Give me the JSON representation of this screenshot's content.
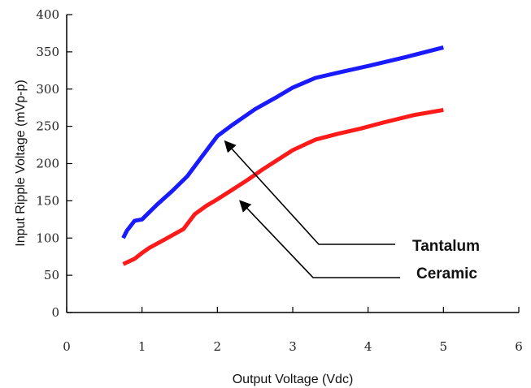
{
  "chart_data": {
    "type": "line",
    "xlabel": "Output Voltage (Vdc)",
    "ylabel": "Input Ripple Voltage (mVp-p)",
    "xlim": [
      0,
      6
    ],
    "ylim": [
      0,
      400
    ],
    "xticks": [
      "0",
      "1",
      "2",
      "3",
      "4",
      "5",
      "6"
    ],
    "yticks": [
      "0",
      "50",
      "100",
      "150",
      "200",
      "250",
      "300",
      "350",
      "400"
    ],
    "grid": false,
    "legend": "none",
    "series": [
      {
        "name": "Tantalum",
        "color": "#1a1aff",
        "x": [
          0.75,
          0.8,
          0.9,
          1.0,
          1.05,
          1.2,
          1.4,
          1.6,
          1.8,
          2.0,
          2.2,
          2.5,
          2.8,
          3.0,
          3.3,
          3.6,
          4.0,
          4.5,
          5.0
        ],
        "y": [
          100,
          110,
          123,
          125,
          130,
          145,
          163,
          183,
          210,
          237,
          252,
          273,
          290,
          302,
          315,
          322,
          331,
          343,
          356
        ]
      },
      {
        "name": "Ceramic",
        "color": "#ff1a1a",
        "x": [
          0.75,
          0.9,
          1.0,
          1.1,
          1.3,
          1.55,
          1.7,
          1.85,
          2.0,
          2.2,
          2.4,
          2.6,
          2.8,
          3.0,
          3.3,
          3.6,
          3.9,
          4.2,
          4.6,
          5.0
        ],
        "y": [
          65,
          72,
          80,
          87,
          98,
          112,
          132,
          143,
          152,
          165,
          178,
          192,
          205,
          218,
          232,
          240,
          247,
          255,
          265,
          272
        ]
      }
    ],
    "annotations": [
      {
        "text": "Tantalum",
        "series": "Tantalum",
        "points_to": [
          2.1,
          230
        ]
      },
      {
        "text": "Ceramic",
        "series": "Ceramic",
        "points_to": [
          2.3,
          150
        ]
      }
    ]
  }
}
